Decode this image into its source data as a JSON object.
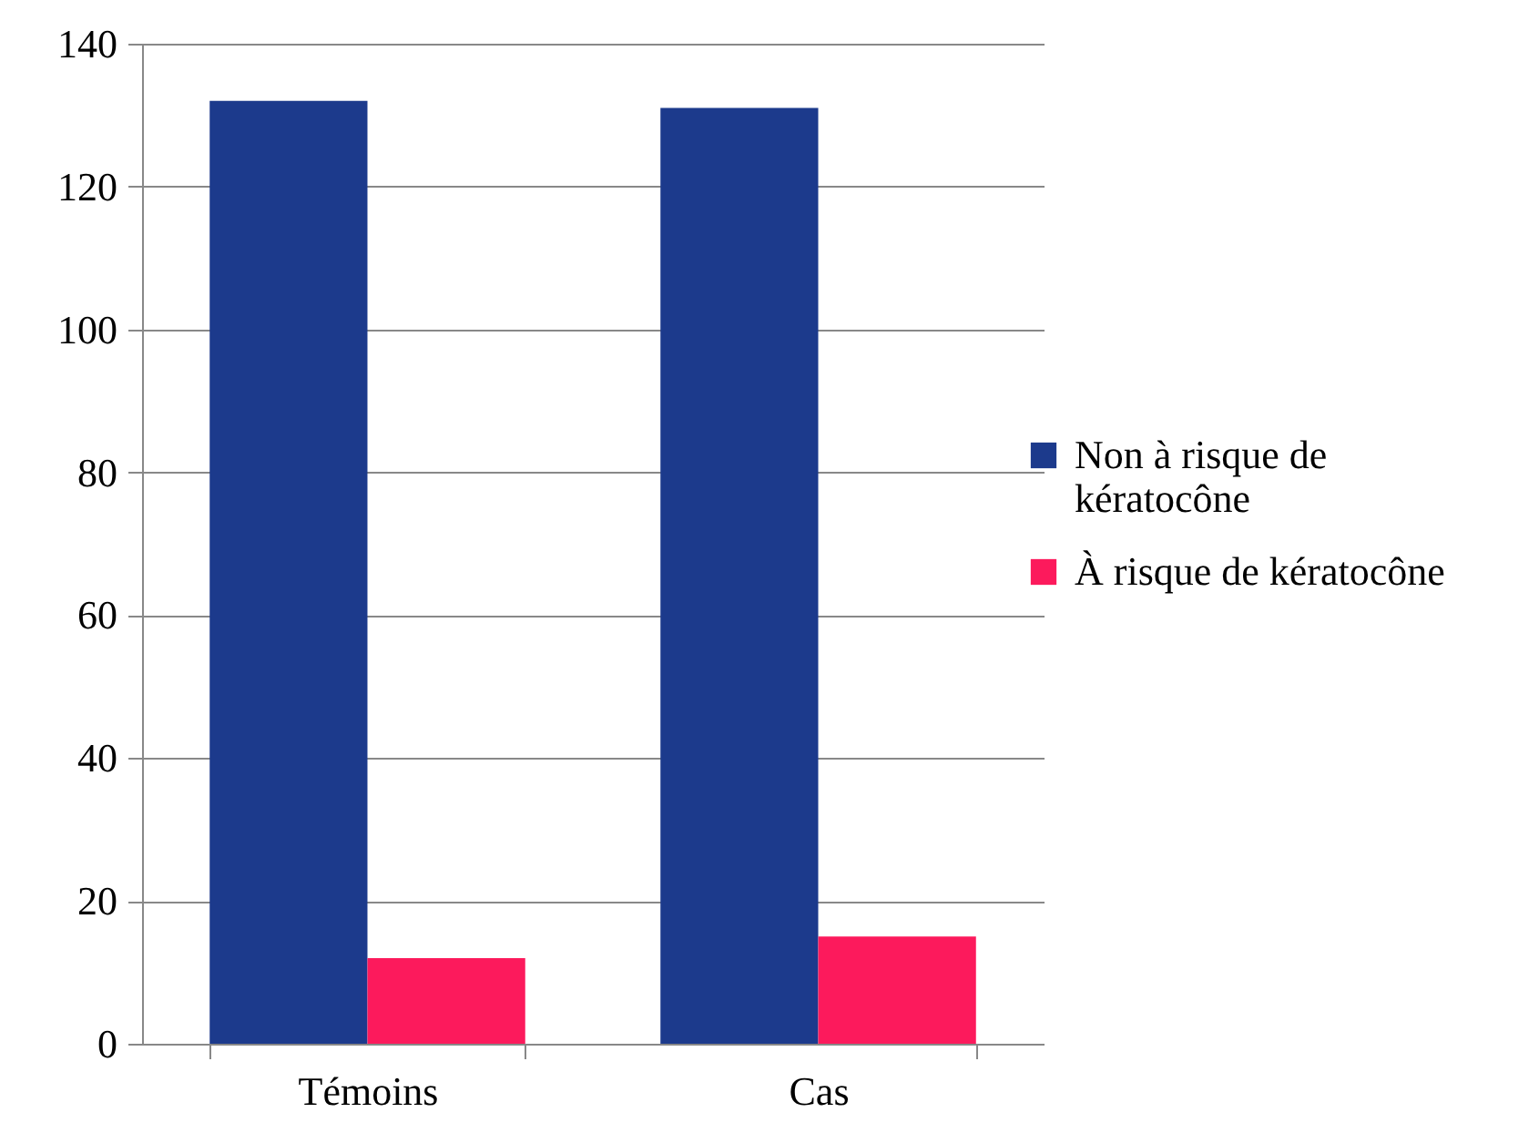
{
  "chart_data": {
    "type": "bar",
    "categories": [
      "Témoins",
      "Cas"
    ],
    "series": [
      {
        "name": "Non à risque de kératocône",
        "color": "#1c3a8c",
        "values": [
          132,
          131
        ]
      },
      {
        "name": "À risque de kératocône",
        "color": "#fc1a5c",
        "values": [
          12,
          15
        ]
      }
    ],
    "ylim": [
      0,
      140
    ],
    "yticks": [
      0,
      20,
      40,
      60,
      80,
      100,
      120,
      140
    ],
    "grid": "y",
    "legend": "right"
  }
}
